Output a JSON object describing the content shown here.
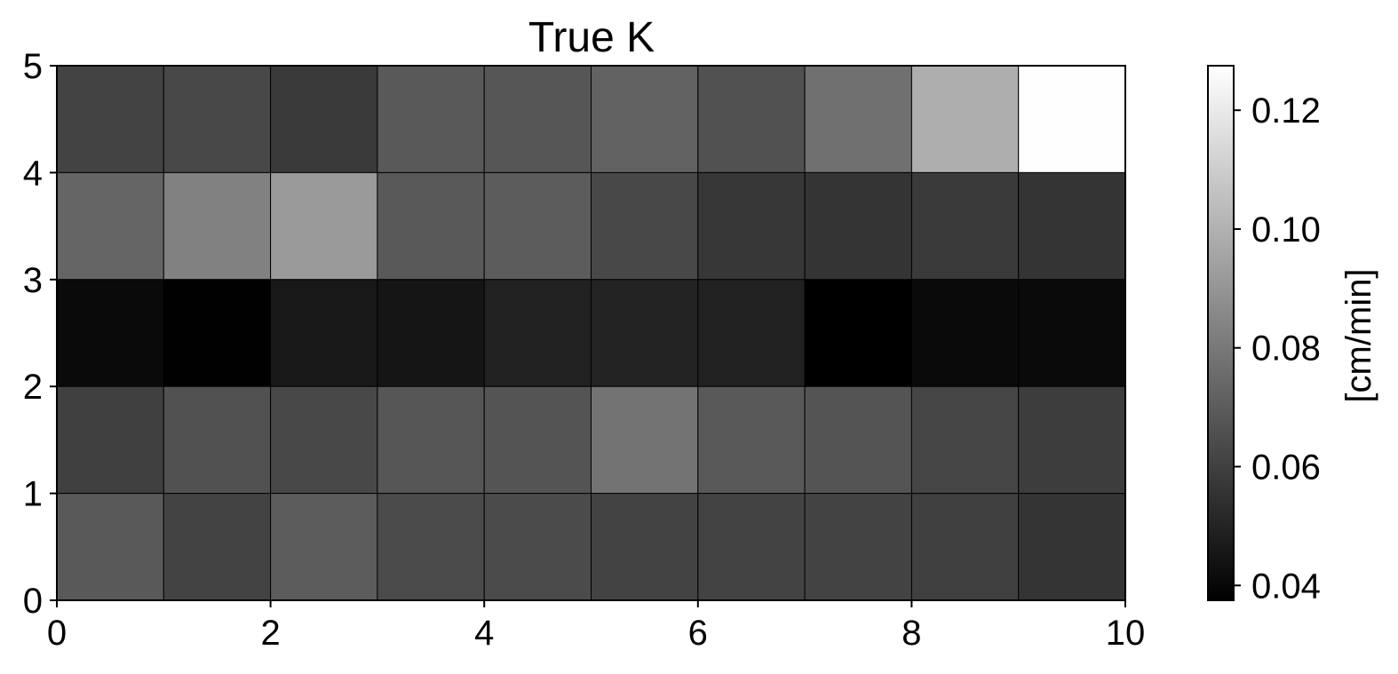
{
  "chart_data": {
    "type": "heatmap",
    "title": "True K",
    "xlabel": "",
    "ylabel": "",
    "xlim": [
      0,
      10
    ],
    "ylim": [
      0,
      5
    ],
    "x_ticks": [
      "0",
      "2",
      "4",
      "6",
      "8",
      "10"
    ],
    "y_ticks": [
      "0",
      "1",
      "2",
      "3",
      "4",
      "5"
    ],
    "colormap": "gray",
    "color_range": [
      0.0375,
      0.1275
    ],
    "colorbar_label": "[cm/min]",
    "colorbar_ticks": [
      "0.04",
      "0.06",
      "0.08",
      "0.10",
      "0.12"
    ],
    "colorbar_tick_values": [
      0.04,
      0.06,
      0.08,
      0.1,
      0.12
    ],
    "grid": false,
    "rows_top_to_bottom": [
      {
        "y_range": "4-5",
        "values": [
          0.061,
          0.063,
          0.058,
          0.069,
          0.068,
          0.072,
          0.066,
          0.077,
          0.099,
          0.127
        ]
      },
      {
        "y_range": "3-4",
        "values": [
          0.073,
          0.083,
          0.092,
          0.069,
          0.07,
          0.063,
          0.057,
          0.056,
          0.058,
          0.056
        ]
      },
      {
        "y_range": "2-3",
        "values": [
          0.041,
          0.038,
          0.046,
          0.045,
          0.049,
          0.05,
          0.049,
          0.037,
          0.041,
          0.041
        ]
      },
      {
        "y_range": "1-2",
        "values": [
          0.06,
          0.066,
          0.063,
          0.068,
          0.067,
          0.078,
          0.069,
          0.067,
          0.062,
          0.059
        ]
      },
      {
        "y_range": "0-1",
        "values": [
          0.069,
          0.061,
          0.07,
          0.064,
          0.064,
          0.061,
          0.061,
          0.061,
          0.06,
          0.056
        ]
      }
    ]
  }
}
